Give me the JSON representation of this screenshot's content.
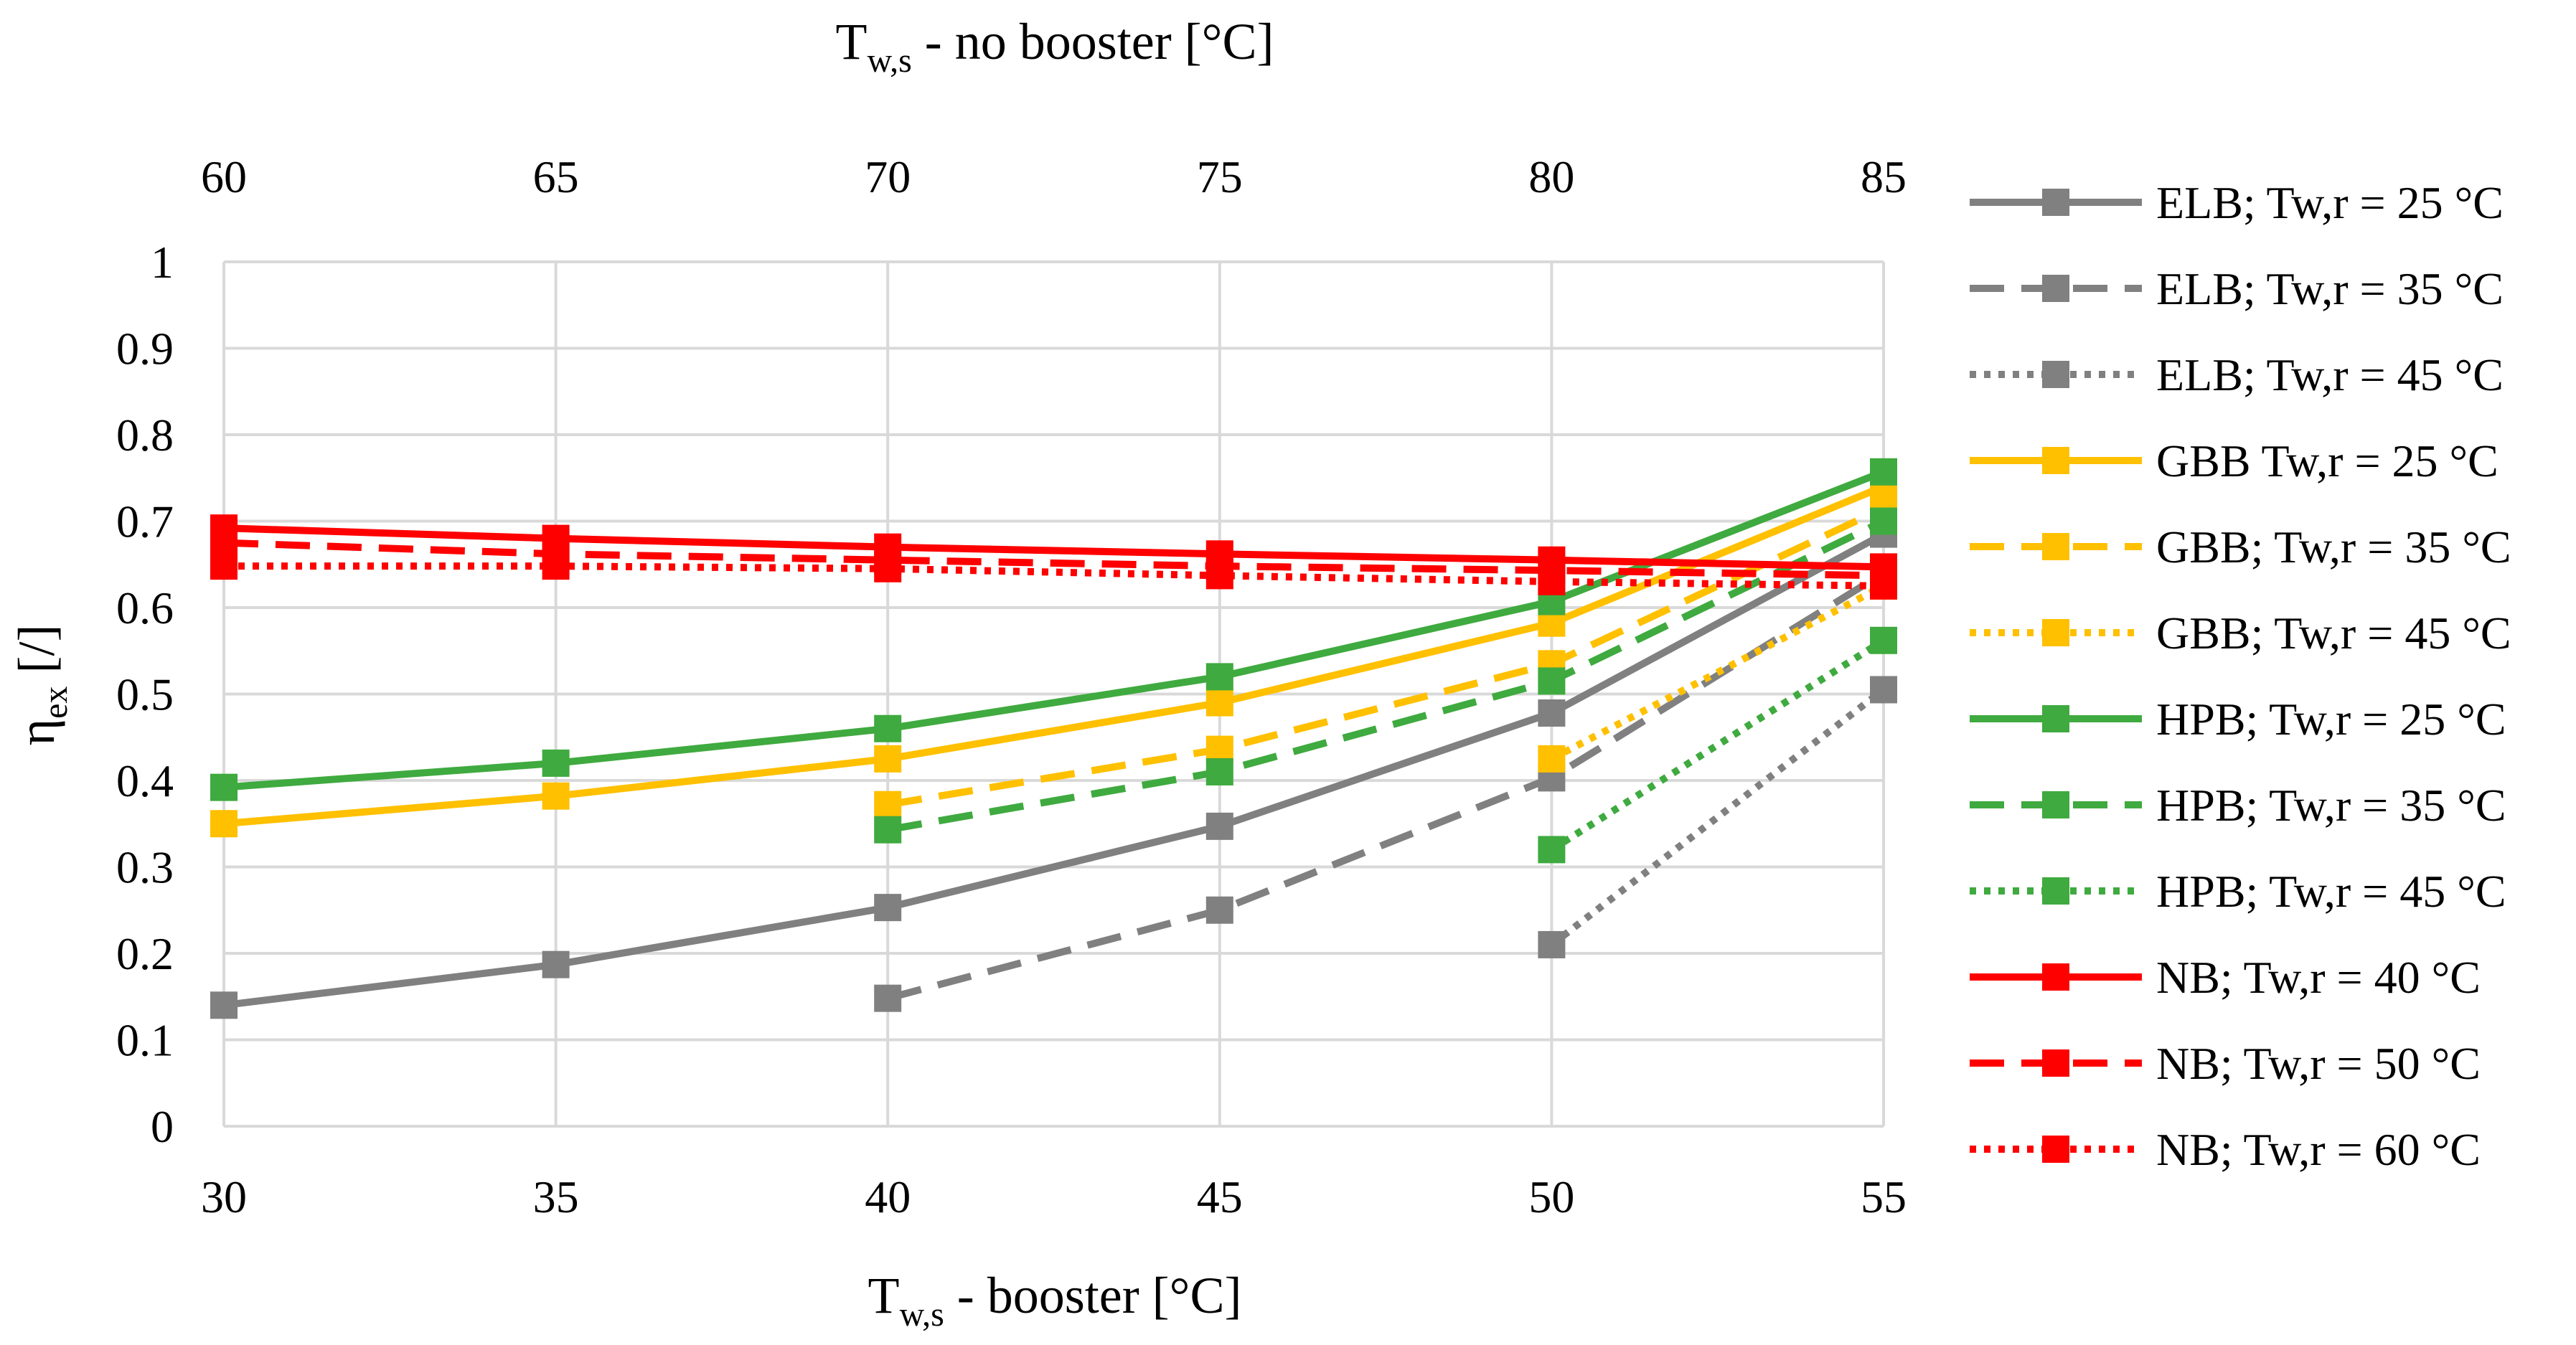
{
  "chart_data": {
    "type": "line",
    "ylabel": "η_ex [/]",
    "ylabel_main": "η",
    "ylabel_sub": "ex",
    "ylabel_suffix": " [/]",
    "xlabel_bottom_main": "T",
    "xlabel_bottom_sub": "w,s",
    "xlabel_bottom_suffix": " - booster [°C]",
    "xlabel_top_main": "T",
    "xlabel_top_sub": "w,s",
    "xlabel_top_suffix": " - no booster [°C]",
    "x_bottom_ticks": [
      "30",
      "35",
      "40",
      "45",
      "50",
      "55"
    ],
    "x_top_ticks": [
      "60",
      "65",
      "70",
      "75",
      "80",
      "85"
    ],
    "y_ticks": [
      "0",
      "0.1",
      "0.2",
      "0.3",
      "0.4",
      "0.5",
      "0.6",
      "0.7",
      "0.8",
      "0.9",
      "1"
    ],
    "xlim": [
      30,
      55
    ],
    "ylim": [
      0,
      1
    ],
    "grid": true,
    "legend_position": "right",
    "series": [
      {
        "name": "ELB; Tw,r = 25 °C",
        "color": "#808080",
        "dash": "solid",
        "x": [
          30,
          35,
          40,
          45,
          50,
          55
        ],
        "values": [
          0.14,
          0.187,
          0.253,
          0.347,
          0.478,
          0.685
        ]
      },
      {
        "name": "ELB; Tw,r = 35 °C",
        "color": "#808080",
        "dash": "dashed",
        "x": [
          40,
          45,
          50,
          55
        ],
        "values": [
          0.148,
          0.25,
          0.403,
          0.64
        ]
      },
      {
        "name": "ELB; Tw,r = 45 °C",
        "color": "#808080",
        "dash": "dotted",
        "x": [
          50,
          55
        ],
        "values": [
          0.21,
          0.505
        ]
      },
      {
        "name": "GBB Tw,r = 25 °C",
        "color": "#FFC000",
        "dash": "solid",
        "x": [
          30,
          35,
          40,
          45,
          50,
          55
        ],
        "values": [
          0.35,
          0.382,
          0.425,
          0.49,
          0.582,
          0.74
        ]
      },
      {
        "name": "GBB; Tw,r = 35 °C",
        "color": "#FFC000",
        "dash": "dashed",
        "x": [
          40,
          45,
          50,
          55
        ],
        "values": [
          0.372,
          0.436,
          0.535,
          0.715
        ]
      },
      {
        "name": "GBB; Tw,r = 45 °C",
        "color": "#FFC000",
        "dash": "dotted",
        "x": [
          50,
          55
        ],
        "values": [
          0.425,
          0.625
        ]
      },
      {
        "name": "HPB; Tw,r = 25 °C",
        "color": "#3FAA3F",
        "dash": "solid",
        "x": [
          30,
          35,
          40,
          45,
          50,
          55
        ],
        "values": [
          0.392,
          0.42,
          0.46,
          0.52,
          0.607,
          0.757
        ]
      },
      {
        "name": "HPB; Tw,r = 35 °C",
        "color": "#3FAA3F",
        "dash": "dashed",
        "x": [
          40,
          45,
          50,
          55
        ],
        "values": [
          0.343,
          0.41,
          0.515,
          0.7
        ]
      },
      {
        "name": "HPB; Tw,r = 45 °C",
        "color": "#3FAA3F",
        "dash": "dotted",
        "x": [
          50,
          55
        ],
        "values": [
          0.32,
          0.562
        ]
      },
      {
        "name": "NB; Tw,r = 40 °C",
        "color": "#FF0000",
        "dash": "solid",
        "x": [
          30,
          35,
          40,
          45,
          50,
          55
        ],
        "values": [
          0.692,
          0.68,
          0.67,
          0.662,
          0.655,
          0.647
        ]
      },
      {
        "name": "NB; Tw,r = 50 °C",
        "color": "#FF0000",
        "dash": "dashed",
        "x": [
          30,
          35,
          40,
          45,
          50,
          55
        ],
        "values": [
          0.675,
          0.662,
          0.655,
          0.648,
          0.643,
          0.637
        ]
      },
      {
        "name": "NB; Tw,r = 60 °C",
        "color": "#FF0000",
        "dash": "dotted",
        "x": [
          30,
          35,
          40,
          45,
          50,
          55
        ],
        "values": [
          0.648,
          0.648,
          0.645,
          0.637,
          0.63,
          0.625
        ]
      }
    ]
  }
}
